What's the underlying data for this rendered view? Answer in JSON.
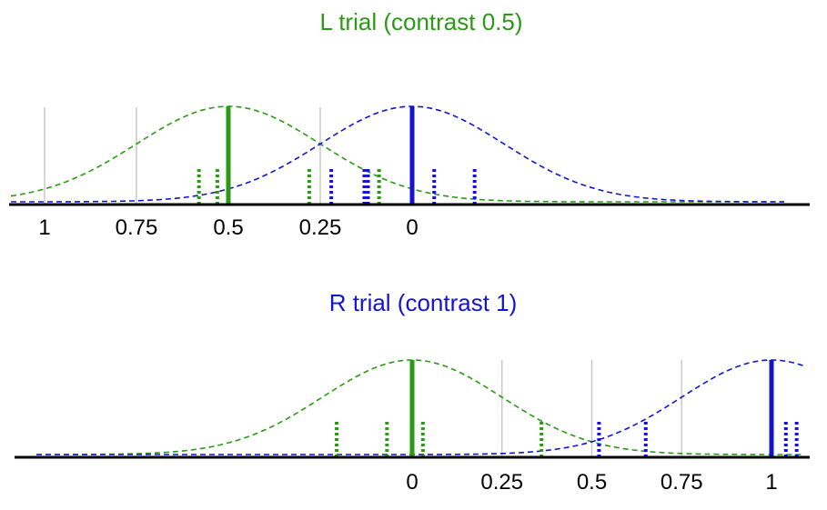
{
  "colors": {
    "left": "#2a9a14",
    "right": "#1414cc",
    "axis": "#000000",
    "grid": "#c8c8c8"
  },
  "panels": [
    {
      "title": "L trial (contrast 0.5)",
      "title_color": "#2a9a14",
      "ticks": [
        {
          "value": 1,
          "label": "1"
        },
        {
          "value": 0.75,
          "label": "0.75"
        },
        {
          "value": 0.5,
          "label": "0.5"
        },
        {
          "value": 0.25,
          "label": "0.25"
        },
        {
          "value": 0,
          "label": "0"
        }
      ],
      "grid_values": [
        1,
        0.75,
        0.25
      ],
      "curves": [
        {
          "color": "left",
          "mean": 0.5,
          "sd": 0.25
        },
        {
          "color": "right",
          "mean": 0,
          "sd": 0.25
        }
      ],
      "means": [
        {
          "color": "left",
          "value": 0.5
        },
        {
          "color": "right",
          "value": 0
        }
      ],
      "samples": [
        {
          "color": "left",
          "value": 0.58
        },
        {
          "color": "left",
          "value": 0.53
        },
        {
          "color": "left",
          "value": 0.28
        },
        {
          "color": "left",
          "value": 0.09
        },
        {
          "color": "right",
          "value": 0.22
        },
        {
          "color": "right",
          "value": 0.13
        },
        {
          "color": "right",
          "value": 0.12
        },
        {
          "color": "right",
          "value": -0.06
        },
        {
          "color": "right",
          "value": -0.17
        }
      ]
    },
    {
      "title": "R trial (contrast 1)",
      "title_color": "#1414cc",
      "ticks": [
        {
          "value": 0,
          "label": "0"
        },
        {
          "value": 0.25,
          "label": "0.25"
        },
        {
          "value": 0.5,
          "label": "0.5"
        },
        {
          "value": 0.75,
          "label": "0.75"
        },
        {
          "value": 1,
          "label": "1"
        }
      ],
      "grid_values": [
        0.25,
        0.5,
        0.75
      ],
      "curves": [
        {
          "color": "left",
          "mean": 0,
          "sd": 0.25
        },
        {
          "color": "right",
          "mean": 1,
          "sd": 0.25
        }
      ],
      "means": [
        {
          "color": "left",
          "value": 0
        },
        {
          "color": "right",
          "value": 1
        }
      ],
      "samples": [
        {
          "color": "left",
          "value": -0.21
        },
        {
          "color": "left",
          "value": -0.07
        },
        {
          "color": "left",
          "value": 0.03
        },
        {
          "color": "left",
          "value": 0.36
        },
        {
          "color": "right",
          "value": 0.52
        },
        {
          "color": "right",
          "value": 0.65
        },
        {
          "color": "right",
          "value": 1.04
        },
        {
          "color": "right",
          "value": 1.07
        }
      ]
    }
  ]
}
